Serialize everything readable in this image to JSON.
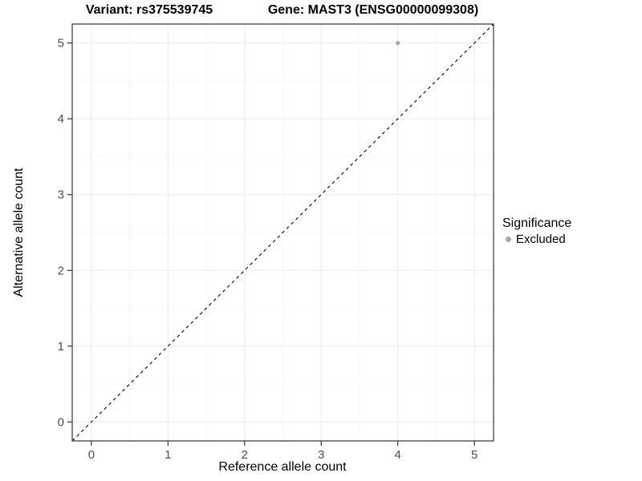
{
  "chart_data": {
    "type": "scatter",
    "titles": {
      "left": "Variant: rs375539745",
      "right": "Gene: MAST3 (ENSG00000099308)"
    },
    "xlabel": "Reference allele count",
    "ylabel": "Alternative allele count",
    "xlim": [
      -0.25,
      5.25
    ],
    "ylim": [
      -0.25,
      5.25
    ],
    "xticks": [
      0,
      1,
      2,
      3,
      4,
      5
    ],
    "yticks": [
      0,
      1,
      2,
      3,
      4,
      5
    ],
    "grid": true,
    "series": [
      {
        "name": "Excluded",
        "color": "#a9a9a9",
        "points": [
          {
            "x": 4,
            "y": 5
          }
        ]
      }
    ],
    "reference_line": {
      "kind": "identity",
      "equation": "y = x",
      "style": "dashed",
      "color": "#000000"
    },
    "legend": {
      "title": "Significance",
      "position": "right",
      "entries": [
        {
          "label": "Excluded",
          "color": "#a9a9a9"
        }
      ]
    },
    "colors": {
      "panel_border": "#333333",
      "grid_major": "#ebebeb",
      "grid_minor": "#f6f6f6",
      "tick": "#333333",
      "tick_label": "#4d4d4d"
    }
  }
}
